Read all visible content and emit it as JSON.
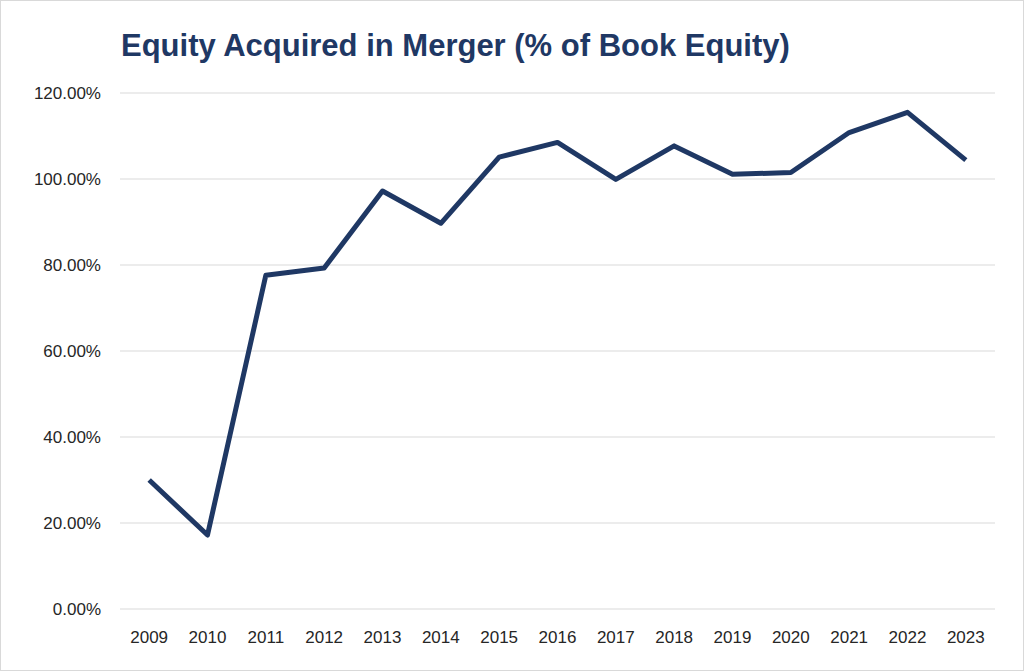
{
  "chart_data": {
    "type": "line",
    "title": "Equity Acquired in Merger (% of Book Equity)",
    "categories": [
      "2009",
      "2010",
      "2011",
      "2012",
      "2013",
      "2014",
      "2015",
      "2016",
      "2017",
      "2018",
      "2019",
      "2020",
      "2021",
      "2022",
      "2023"
    ],
    "values": [
      30.0,
      17.2,
      77.6,
      79.3,
      97.2,
      89.7,
      105.1,
      108.5,
      99.9,
      107.7,
      101.1,
      101.5,
      110.8,
      115.5,
      104.4
    ],
    "color": "#1f3864",
    "ylim": [
      0,
      120
    ],
    "yticks": [
      {
        "value": 0,
        "label": "0.00%"
      },
      {
        "value": 20,
        "label": "20.00%"
      },
      {
        "value": 40,
        "label": "40.00%"
      },
      {
        "value": 60,
        "label": "60.00%"
      },
      {
        "value": 80,
        "label": "80.00%"
      },
      {
        "value": 100,
        "label": "100.00%"
      },
      {
        "value": 120,
        "label": "120.00%"
      }
    ],
    "grid": true
  }
}
